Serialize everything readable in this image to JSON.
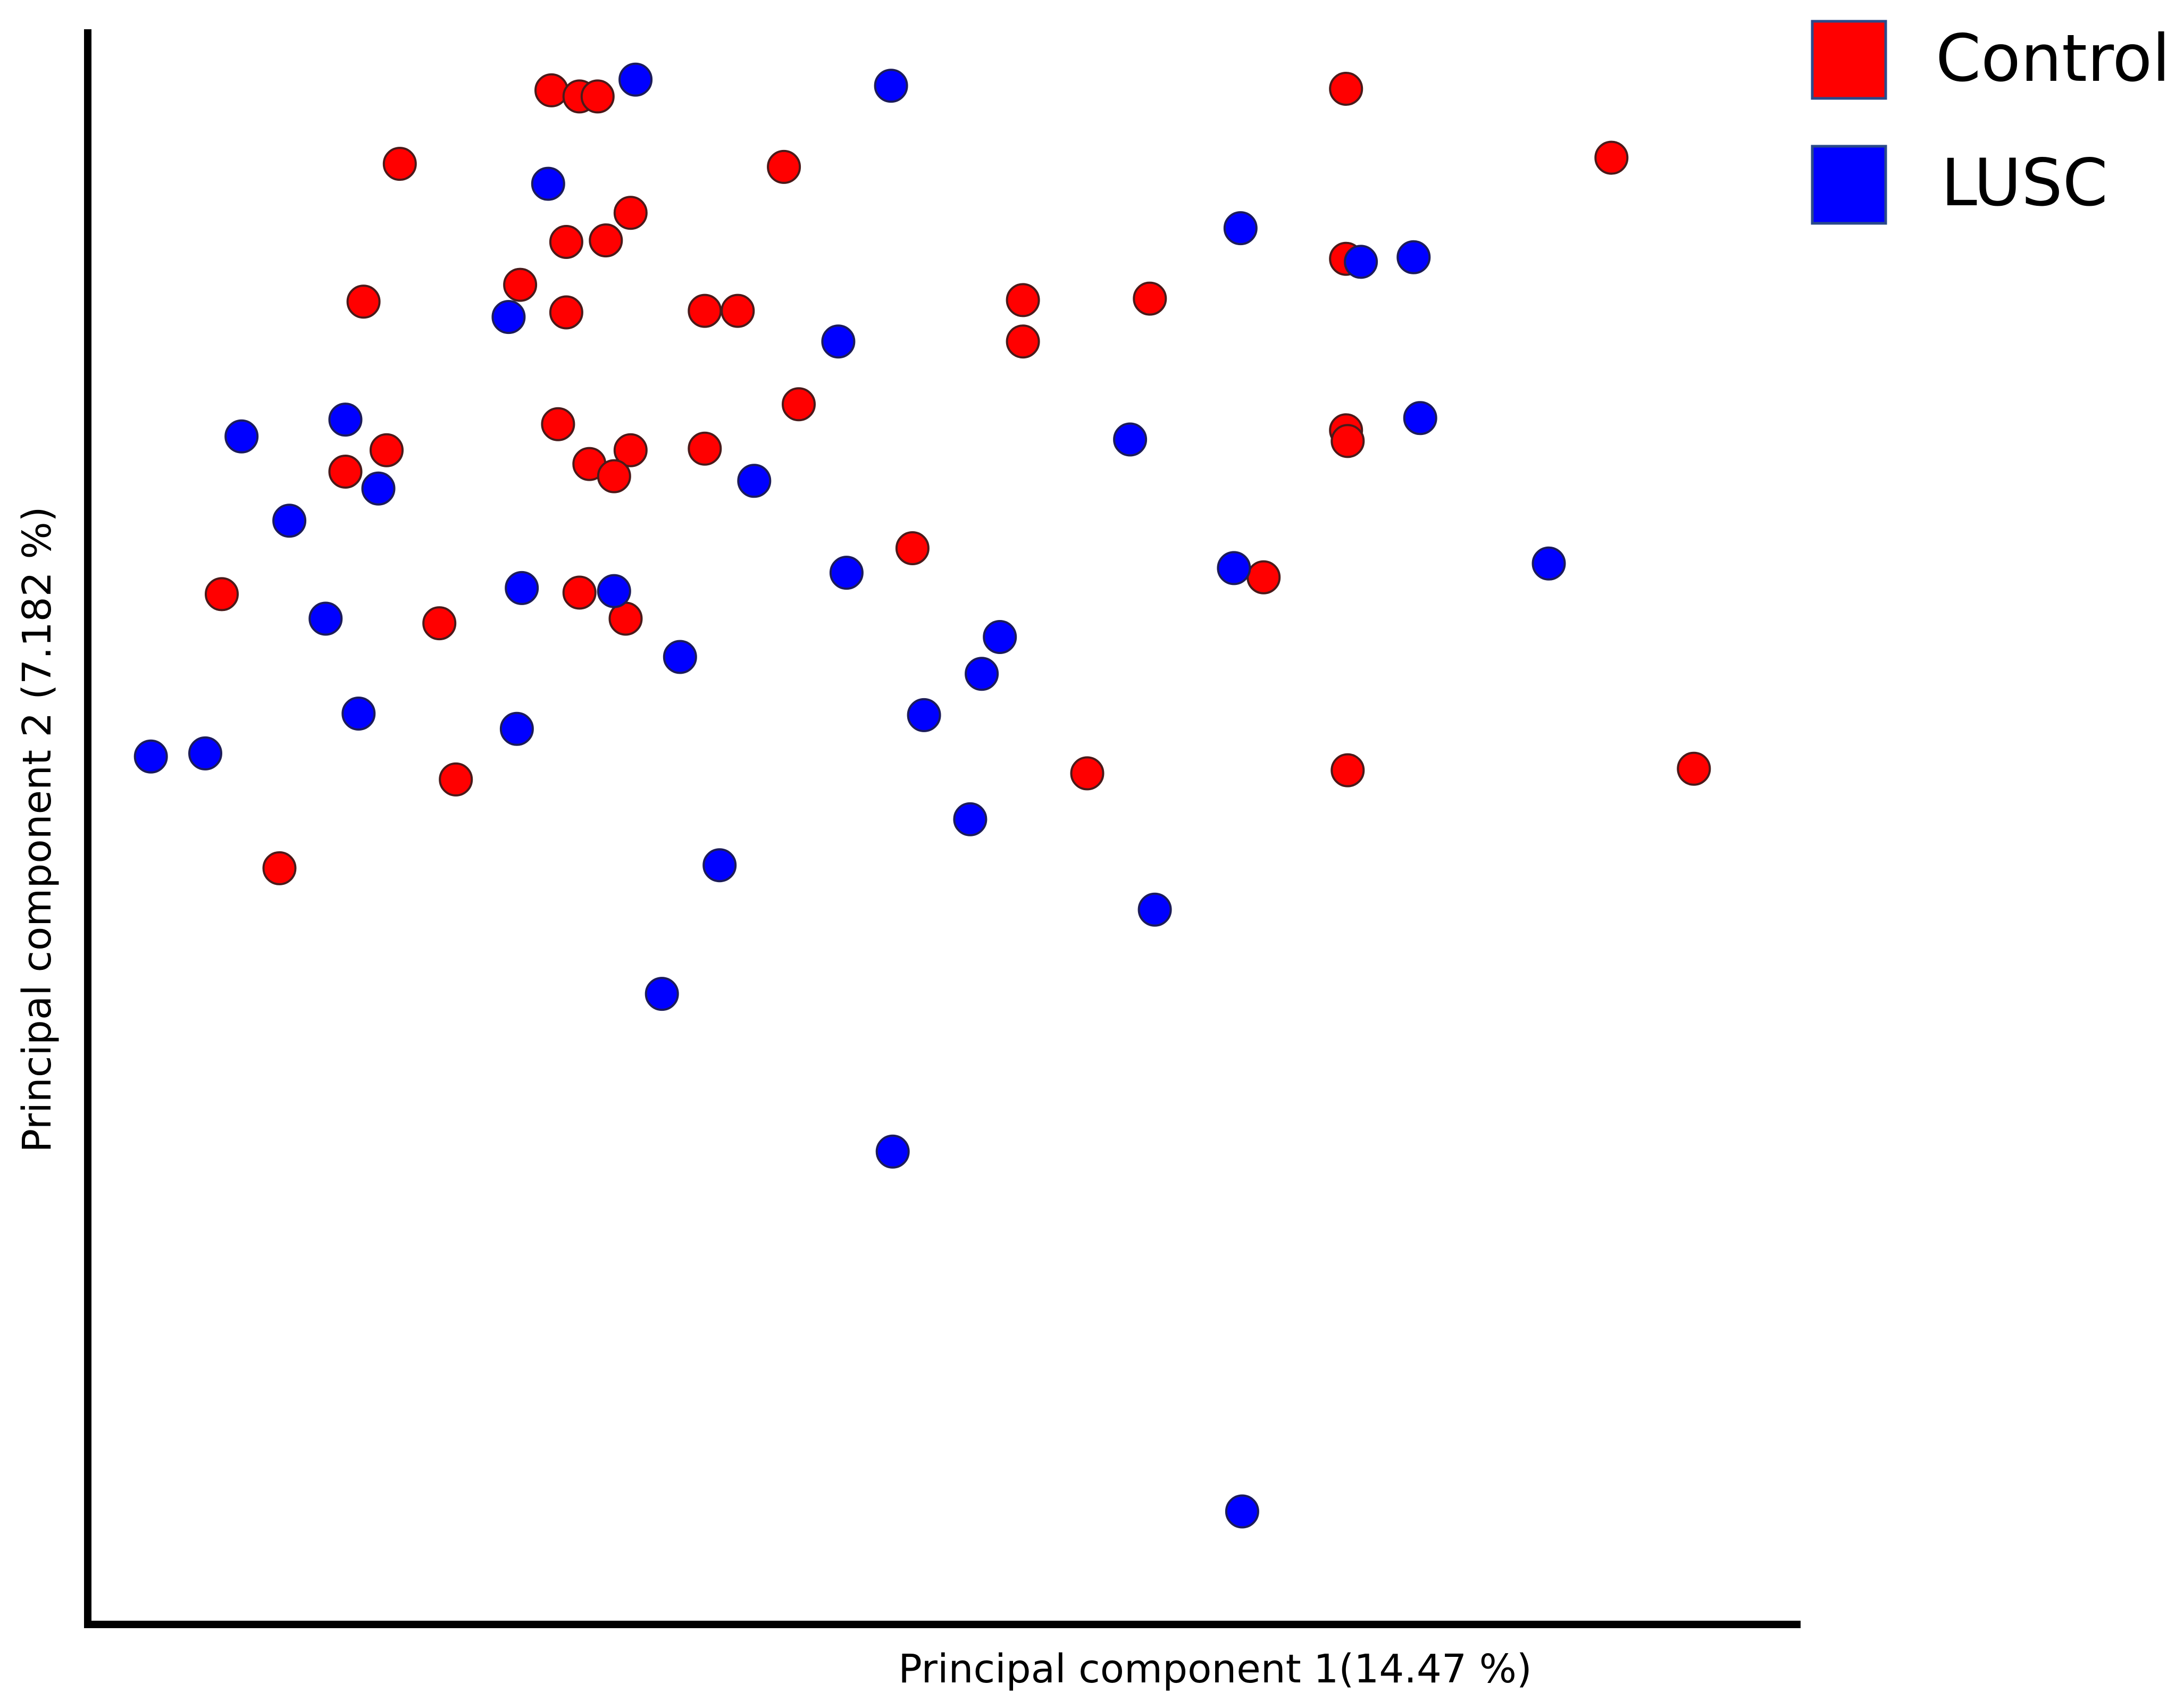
{
  "chart_data": {
    "type": "scatter",
    "title": "",
    "xlabel": "Principal component 1(14.47 %)",
    "ylabel": "Principal component 2 (7.182 %)",
    "xlim": [
      0,
      100
    ],
    "ylim": [
      0,
      100
    ],
    "grid": false,
    "ticks": false,
    "legend_position": "top-right",
    "series": [
      {
        "name": "Control",
        "color": "#ff0000",
        "points": [
          {
            "x": 27.0,
            "y": 97.4
          },
          {
            "x": 28.7,
            "y": 97.0
          },
          {
            "x": 29.8,
            "y": 97.0
          },
          {
            "x": 17.8,
            "y": 92.6
          },
          {
            "x": 41.1,
            "y": 92.4
          },
          {
            "x": 75.2,
            "y": 97.5
          },
          {
            "x": 91.3,
            "y": 93.0
          },
          {
            "x": 31.8,
            "y": 89.4
          },
          {
            "x": 27.9,
            "y": 87.5
          },
          {
            "x": 30.3,
            "y": 87.6
          },
          {
            "x": 25.1,
            "y": 84.7
          },
          {
            "x": 15.6,
            "y": 83.6
          },
          {
            "x": 27.9,
            "y": 82.9
          },
          {
            "x": 36.3,
            "y": 83.0
          },
          {
            "x": 38.3,
            "y": 83.0
          },
          {
            "x": 55.6,
            "y": 83.7
          },
          {
            "x": 63.3,
            "y": 83.8
          },
          {
            "x": 55.6,
            "y": 81.0
          },
          {
            "x": 75.2,
            "y": 86.4
          },
          {
            "x": 42.0,
            "y": 76.9
          },
          {
            "x": 27.4,
            "y": 75.6
          },
          {
            "x": 17.0,
            "y": 73.9
          },
          {
            "x": 31.8,
            "y": 73.9
          },
          {
            "x": 36.3,
            "y": 74.0
          },
          {
            "x": 29.3,
            "y": 73.0
          },
          {
            "x": 14.5,
            "y": 72.5
          },
          {
            "x": 30.8,
            "y": 72.2
          },
          {
            "x": 75.2,
            "y": 75.2
          },
          {
            "x": 75.3,
            "y": 74.5
          },
          {
            "x": 48.9,
            "y": 67.5
          },
          {
            "x": 70.2,
            "y": 65.6
          },
          {
            "x": 7.0,
            "y": 64.5
          },
          {
            "x": 28.7,
            "y": 64.6
          },
          {
            "x": 31.5,
            "y": 62.9
          },
          {
            "x": 20.2,
            "y": 62.6
          },
          {
            "x": 59.5,
            "y": 52.8
          },
          {
            "x": 75.3,
            "y": 53.0
          },
          {
            "x": 96.3,
            "y": 53.1
          },
          {
            "x": 21.2,
            "y": 52.4
          },
          {
            "x": 10.5,
            "y": 46.6
          }
        ]
      },
      {
        "name": "LUSC",
        "color": "#0000ff",
        "points": [
          {
            "x": 32.1,
            "y": 98.1
          },
          {
            "x": 47.6,
            "y": 97.7
          },
          {
            "x": 26.8,
            "y": 91.3
          },
          {
            "x": 68.8,
            "y": 88.4
          },
          {
            "x": 76.1,
            "y": 86.2
          },
          {
            "x": 79.3,
            "y": 86.5
          },
          {
            "x": 24.4,
            "y": 82.6
          },
          {
            "x": 44.4,
            "y": 81.0
          },
          {
            "x": 14.5,
            "y": 75.9
          },
          {
            "x": 8.2,
            "y": 74.8
          },
          {
            "x": 79.7,
            "y": 76.0
          },
          {
            "x": 62.1,
            "y": 74.6
          },
          {
            "x": 16.5,
            "y": 71.4
          },
          {
            "x": 39.3,
            "y": 71.9
          },
          {
            "x": 11.1,
            "y": 69.3
          },
          {
            "x": 87.5,
            "y": 66.5
          },
          {
            "x": 68.4,
            "y": 66.2
          },
          {
            "x": 44.9,
            "y": 65.9
          },
          {
            "x": 25.2,
            "y": 64.9
          },
          {
            "x": 30.8,
            "y": 64.7
          },
          {
            "x": 13.3,
            "y": 62.9
          },
          {
            "x": 54.2,
            "y": 61.7
          },
          {
            "x": 34.8,
            "y": 60.4
          },
          {
            "x": 53.1,
            "y": 59.3
          },
          {
            "x": 15.3,
            "y": 56.7
          },
          {
            "x": 49.6,
            "y": 56.6
          },
          {
            "x": 24.9,
            "y": 55.7
          },
          {
            "x": 2.7,
            "y": 53.9
          },
          {
            "x": 6.0,
            "y": 54.1
          },
          {
            "x": 52.4,
            "y": 49.8
          },
          {
            "x": 37.2,
            "y": 46.8
          },
          {
            "x": 63.6,
            "y": 43.9
          },
          {
            "x": 33.7,
            "y": 38.4
          },
          {
            "x": 47.7,
            "y": 28.1
          },
          {
            "x": 68.9,
            "y": 4.6
          }
        ]
      }
    ]
  }
}
